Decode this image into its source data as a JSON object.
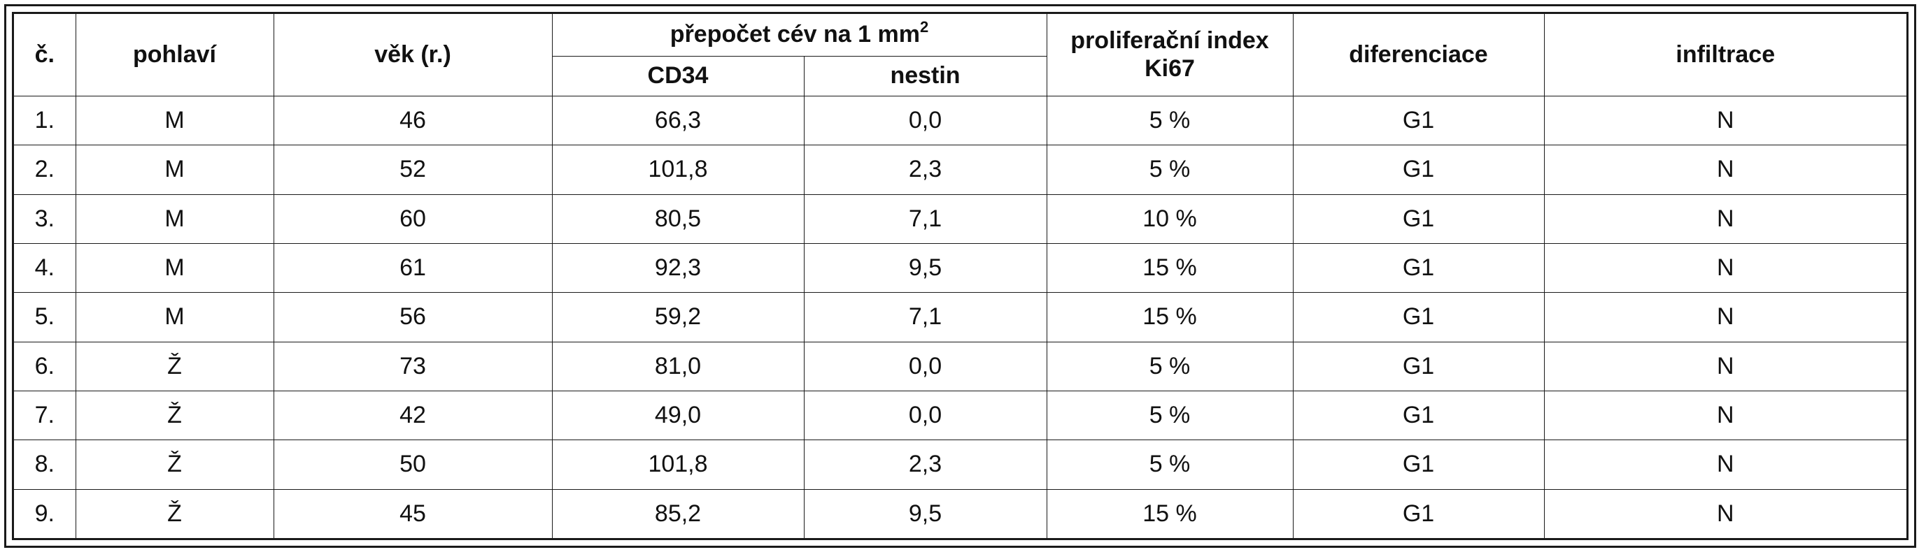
{
  "table": {
    "headers": {
      "c": "č.",
      "pohlavi": "pohlaví",
      "vek": "věk (r.)",
      "prepocet": "přepočet cév na 1 mm",
      "prepocet_sup": "2",
      "cd34": "CD34",
      "nestin": "nestin",
      "prolif_line1": "proliferační index",
      "prolif_line2": "Ki67",
      "diferenciace": "diferenciace",
      "infiltrace": "infiltrace"
    },
    "rows": [
      [
        "1.",
        "M",
        "46",
        "66,3",
        "0,0",
        "5 %",
        "G1",
        "N"
      ],
      [
        "2.",
        "M",
        "52",
        "101,8",
        "2,3",
        "5 %",
        "G1",
        "N"
      ],
      [
        "3.",
        "M",
        "60",
        "80,5",
        "7,1",
        "10 %",
        "G1",
        "N"
      ],
      [
        "4.",
        "M",
        "61",
        "92,3",
        "9,5",
        "15 %",
        "G1",
        "N"
      ],
      [
        "5.",
        "M",
        "56",
        "59,2",
        "7,1",
        "15 %",
        "G1",
        "N"
      ],
      [
        "6.",
        "Ž",
        "73",
        "81,0",
        "0,0",
        "5 %",
        "G1",
        "N"
      ],
      [
        "7.",
        "Ž",
        "42",
        "49,0",
        "0,0",
        "5 %",
        "G1",
        "N"
      ],
      [
        "8.",
        "Ž",
        "50",
        "101,8",
        "2,3",
        "5 %",
        "G1",
        "N"
      ],
      [
        "9.",
        "Ž",
        "45",
        "85,2",
        "9,5",
        "15 %",
        "G1",
        "N"
      ]
    ]
  }
}
